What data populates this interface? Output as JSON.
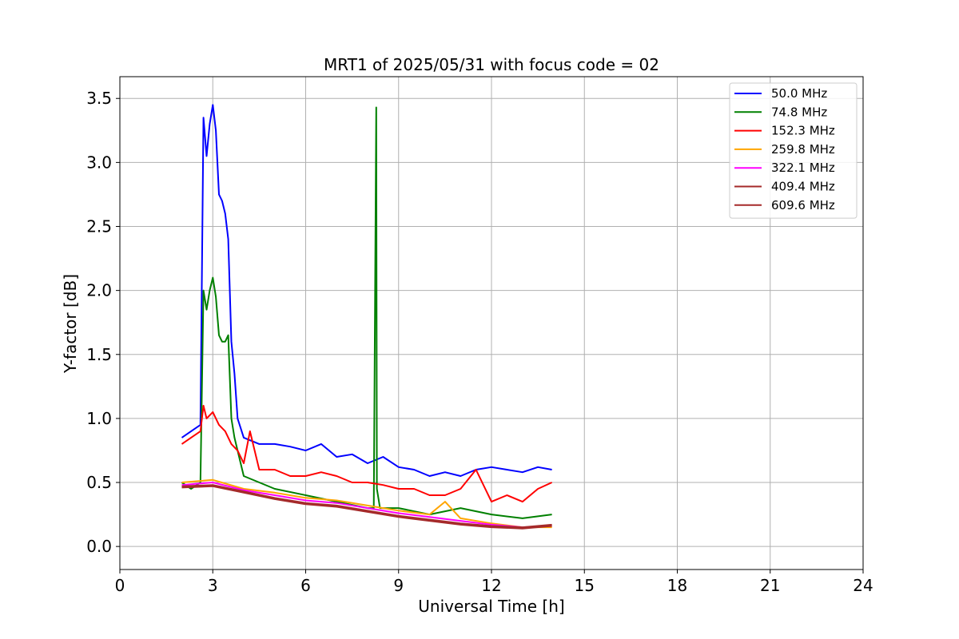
{
  "chart_data": {
    "type": "line",
    "title": "MRT1 of 2025/05/31 with focus code = 02",
    "xlabel": "Universal Time [h]",
    "ylabel": "Y-factor [dB]",
    "xlim": [
      0,
      24
    ],
    "ylim": [
      -0.18,
      3.67
    ],
    "xticks": [
      0,
      3,
      6,
      9,
      12,
      15,
      18,
      21,
      24
    ],
    "yticks": [
      0.0,
      0.5,
      1.0,
      1.5,
      2.0,
      2.5,
      3.0,
      3.5
    ],
    "grid": true,
    "legend_position": "top-right",
    "series": [
      {
        "name": " 50.0 MHz",
        "color": "#0000ff",
        "x": [
          2.0,
          2.3,
          2.6,
          2.7,
          2.8,
          2.9,
          3.0,
          3.1,
          3.2,
          3.3,
          3.4,
          3.5,
          3.6,
          3.7,
          3.8,
          4.0,
          4.5,
          5.0,
          5.5,
          6.0,
          6.5,
          7.0,
          7.5,
          8.0,
          8.5,
          9.0,
          9.5,
          10.0,
          10.5,
          11.0,
          11.5,
          12.0,
          12.5,
          13.0,
          13.5,
          13.95
        ],
        "y": [
          0.85,
          0.9,
          0.95,
          3.35,
          3.05,
          3.3,
          3.45,
          3.25,
          2.75,
          2.7,
          2.6,
          2.4,
          1.6,
          1.35,
          1.0,
          0.85,
          0.8,
          0.8,
          0.78,
          0.75,
          0.8,
          0.7,
          0.72,
          0.65,
          0.7,
          0.62,
          0.6,
          0.55,
          0.58,
          0.55,
          0.6,
          0.62,
          0.6,
          0.58,
          0.62,
          0.6
        ]
      },
      {
        "name": " 74.8 MHz",
        "color": "#008000",
        "x": [
          2.0,
          2.3,
          2.6,
          2.7,
          2.8,
          2.9,
          3.0,
          3.1,
          3.2,
          3.3,
          3.4,
          3.5,
          3.6,
          3.7,
          4.0,
          4.5,
          5.0,
          6.0,
          7.0,
          8.0,
          8.2,
          8.28,
          8.3,
          8.4,
          9.0,
          10.0,
          11.0,
          12.0,
          13.0,
          13.95
        ],
        "y": [
          0.5,
          0.45,
          0.5,
          2.0,
          1.85,
          2.0,
          2.1,
          1.95,
          1.65,
          1.6,
          1.6,
          1.65,
          1.0,
          0.85,
          0.55,
          0.5,
          0.45,
          0.4,
          0.35,
          0.3,
          0.3,
          3.43,
          0.45,
          0.3,
          0.3,
          0.25,
          0.3,
          0.25,
          0.22,
          0.25
        ]
      },
      {
        "name": " 152.3 MHz",
        "color": "#ff0000",
        "x": [
          2.0,
          2.3,
          2.6,
          2.7,
          2.8,
          3.0,
          3.2,
          3.4,
          3.6,
          3.8,
          4.0,
          4.2,
          4.5,
          5.0,
          5.5,
          6.0,
          6.5,
          7.0,
          7.5,
          8.0,
          8.5,
          9.0,
          9.5,
          10.0,
          10.5,
          11.0,
          11.5,
          12.0,
          12.5,
          13.0,
          13.5,
          13.95
        ],
        "y": [
          0.8,
          0.85,
          0.9,
          1.1,
          1.0,
          1.05,
          0.95,
          0.9,
          0.8,
          0.75,
          0.65,
          0.9,
          0.6,
          0.6,
          0.55,
          0.55,
          0.58,
          0.55,
          0.5,
          0.5,
          0.48,
          0.45,
          0.45,
          0.4,
          0.4,
          0.45,
          0.6,
          0.35,
          0.4,
          0.35,
          0.45,
          0.5
        ]
      },
      {
        "name": " 259.8 MHz",
        "color": "#ffa500",
        "x": [
          2.0,
          3.0,
          4.0,
          5.0,
          6.0,
          7.0,
          8.0,
          9.0,
          10.0,
          10.5,
          11.0,
          12.0,
          13.0,
          13.95
        ],
        "y": [
          0.5,
          0.52,
          0.45,
          0.42,
          0.38,
          0.36,
          0.32,
          0.28,
          0.25,
          0.35,
          0.22,
          0.18,
          0.15,
          0.15
        ]
      },
      {
        "name": " 322.1 MHz",
        "color": "#ff00ff",
        "x": [
          2.0,
          3.0,
          4.0,
          5.0,
          6.0,
          7.0,
          8.0,
          9.0,
          10.0,
          11.0,
          12.0,
          13.0,
          13.95
        ],
        "y": [
          0.48,
          0.5,
          0.44,
          0.4,
          0.36,
          0.34,
          0.3,
          0.26,
          0.23,
          0.2,
          0.17,
          0.15,
          0.16
        ]
      },
      {
        "name": " 409.4 MHz",
        "color": "#a52a2a",
        "x": [
          2.0,
          3.0,
          4.0,
          5.0,
          6.0,
          7.0,
          8.0,
          9.0,
          10.0,
          11.0,
          12.0,
          13.0,
          13.95
        ],
        "y": [
          0.47,
          0.48,
          0.43,
          0.38,
          0.34,
          0.32,
          0.28,
          0.24,
          0.21,
          0.18,
          0.16,
          0.15,
          0.17
        ]
      },
      {
        "name": " 609.6 MHz",
        "color": "#a52a2a",
        "x": [
          2.0,
          3.0,
          4.0,
          5.0,
          6.0,
          7.0,
          8.0,
          9.0,
          10.0,
          11.0,
          12.0,
          13.0,
          13.95
        ],
        "y": [
          0.46,
          0.47,
          0.42,
          0.37,
          0.33,
          0.31,
          0.27,
          0.23,
          0.2,
          0.17,
          0.15,
          0.14,
          0.16
        ]
      }
    ]
  }
}
